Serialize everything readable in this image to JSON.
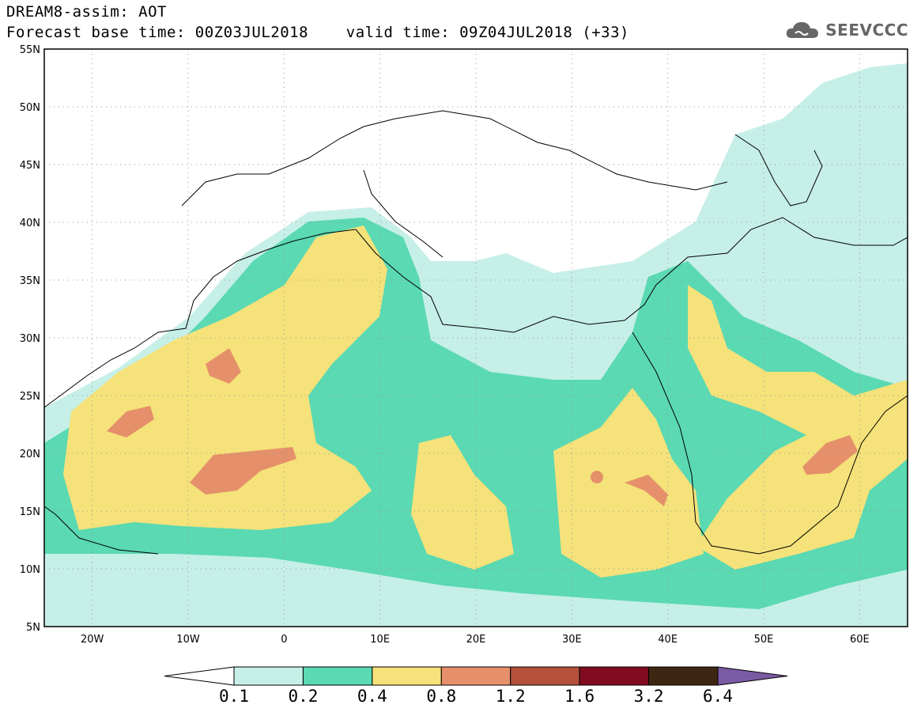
{
  "header": {
    "line1": "DREAM8-assim: AOT",
    "line2": "Forecast base time: 00Z03JUL2018    valid time: 09Z04JUL2018 (+33)"
  },
  "logo": {
    "text": "SEEVCCC",
    "icon": "cloud-icon"
  },
  "map": {
    "lon_range": [
      -25,
      65
    ],
    "lat_range": [
      5,
      55
    ],
    "lon_ticks": [
      "20W",
      "10W",
      "0",
      "10E",
      "20E",
      "30E",
      "40E",
      "50E",
      "60E"
    ],
    "lat_ticks": [
      "55N",
      "50N",
      "45N",
      "40N",
      "35N",
      "30N",
      "25N",
      "20N",
      "15N",
      "10N",
      "5N"
    ]
  },
  "colorbar": {
    "labels": [
      "0.1",
      "0.2",
      "0.4",
      "0.8",
      "1.2",
      "1.6",
      "3.2",
      "6.4"
    ],
    "colors": [
      "#c6efe8",
      "#5ad9b2",
      "#f5e27a",
      "#e5906a",
      "#b5513b",
      "#820b1f",
      "#3e2712",
      "#7b5aa4"
    ]
  },
  "chart_data": {
    "type": "heatmap",
    "title": "DREAM8-assim: AOT",
    "xlabel": "",
    "ylabel": "",
    "xlim": [
      -25,
      65
    ],
    "ylim": [
      5,
      55
    ],
    "levels": [
      0.1,
      0.2,
      0.4,
      0.8,
      1.2,
      1.6,
      3.2,
      6.4
    ]
  }
}
